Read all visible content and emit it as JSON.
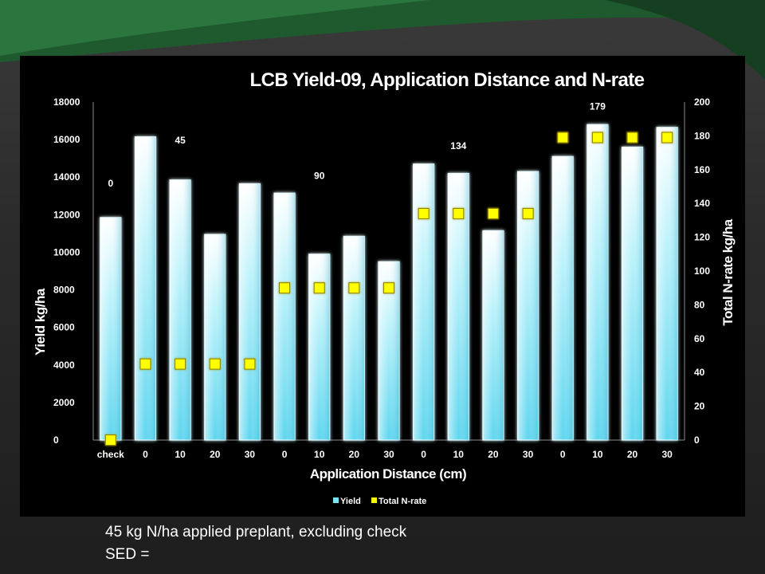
{
  "chart_data": {
    "type": "bar",
    "title": "LCB Yield-09, Application Distance and N-rate",
    "xlabel": "Application Distance (cm)",
    "ylabel": "Yield kg/ha",
    "y2label": "Total N-rate kg/ha",
    "categories": [
      "check",
      "0",
      "10",
      "20",
      "30",
      "0",
      "10",
      "20",
      "30",
      "0",
      "10",
      "20",
      "30",
      "0",
      "10",
      "20",
      "30"
    ],
    "ylim": [
      0,
      18000
    ],
    "y_ticks": [
      "0",
      "2000",
      "4000",
      "6000",
      "8000",
      "10000",
      "12000",
      "14000",
      "16000",
      "18000"
    ],
    "y2lim": [
      0,
      200
    ],
    "y2_ticks": [
      "0",
      "20",
      "40",
      "60",
      "80",
      "100",
      "120",
      "140",
      "160",
      "180",
      "200"
    ],
    "grid": false,
    "legend_position": "bottom",
    "series": [
      {
        "name": "Yield",
        "type": "bar",
        "axis": "left",
        "color": "#7fe3f5",
        "values": [
          11850,
          16150,
          13850,
          10950,
          13650,
          13150,
          9900,
          10850,
          9500,
          14700,
          14200,
          11150,
          14300,
          15100,
          16800,
          15600,
          16650
        ]
      },
      {
        "name": "Total N-rate",
        "type": "scatter",
        "axis": "right",
        "marker": "square",
        "color": "#ffff00",
        "values": [
          0,
          45,
          45,
          45,
          45,
          90,
          90,
          90,
          90,
          134,
          134,
          134,
          134,
          179,
          179,
          179,
          179
        ]
      }
    ],
    "annotations": [
      {
        "text": "0",
        "category_index": 0,
        "y": 13500
      },
      {
        "text": "45",
        "category_index": 2,
        "y": 15800
      },
      {
        "text": "90",
        "category_index": 6,
        "y": 13900
      },
      {
        "text": "134",
        "category_index": 10,
        "y": 15500
      },
      {
        "text": "179",
        "category_index": 14,
        "y": 17600
      }
    ]
  },
  "notes": {
    "line1": "45 kg N/ha applied preplant, excluding check",
    "line2": "SED ="
  }
}
